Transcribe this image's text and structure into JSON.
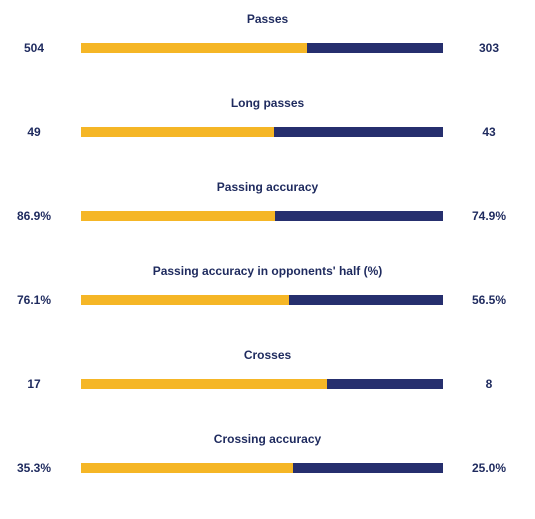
{
  "colors": {
    "home": "#f5b626",
    "away": "#262f6e",
    "text": "#1e2a5e"
  },
  "chart_data": {
    "type": "bar",
    "orientation": "horizontal-stacked-comparison",
    "stats": [
      {
        "title": "Passes",
        "home_label": "504",
        "away_label": "303",
        "home": 504,
        "away": 303
      },
      {
        "title": "Long passes",
        "home_label": "49",
        "away_label": "43",
        "home": 49,
        "away": 43
      },
      {
        "title": "Passing accuracy",
        "home_label": "86.9%",
        "away_label": "74.9%",
        "home": 86.9,
        "away": 74.9
      },
      {
        "title": "Passing accuracy in opponents' half (%)",
        "home_label": "76.1%",
        "away_label": "56.5%",
        "home": 76.1,
        "away": 56.5
      },
      {
        "title": "Crosses",
        "home_label": "17",
        "away_label": "8",
        "home": 17,
        "away": 8
      },
      {
        "title": "Crossing accuracy",
        "home_label": "35.3%",
        "away_label": "25.0%",
        "home": 35.3,
        "away": 25.0
      }
    ]
  }
}
